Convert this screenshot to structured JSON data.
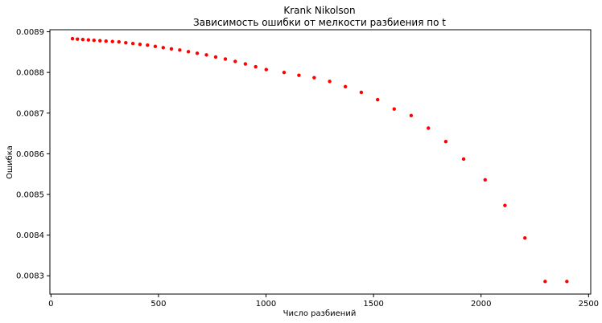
{
  "chart_data": {
    "type": "scatter",
    "title": "Krank Nikolson",
    "subtitle": "Зависимость ошибки от мелкости разбиения по t",
    "xlabel": "Число разбиений",
    "ylabel": "Ошибка",
    "xlim": [
      -5,
      2510
    ],
    "ylim": [
      0.008255,
      0.008905
    ],
    "xticks": [
      0,
      500,
      1000,
      1500,
      2000,
      2500
    ],
    "xtick_labels": [
      "0",
      "500",
      "1000",
      "1500",
      "2000",
      "2500"
    ],
    "yticks": [
      0.0083,
      0.0084,
      0.0085,
      0.0086,
      0.0087,
      0.0088,
      0.0089
    ],
    "ytick_labels": [
      "0.0083",
      "0.0084",
      "0.0085",
      "0.0086",
      "0.0087",
      "0.0088",
      "0.0089"
    ],
    "grid": false,
    "marker_color": "#ff0000",
    "x": [
      100,
      123,
      148,
      174,
      200,
      228,
      256,
      286,
      316,
      348,
      381,
      414,
      449,
      485,
      522,
      560,
      599,
      639,
      680,
      723,
      766,
      811,
      857,
      904,
      952,
      1001,
      1084,
      1153,
      1224,
      1296,
      1369,
      1443,
      1519,
      1596,
      1675,
      1755,
      1836,
      1919,
      2019,
      2111,
      2204,
      2298,
      2399
    ],
    "y": [
      0.008883,
      0.008882,
      0.008881,
      0.00888,
      0.008879,
      0.008878,
      0.008877,
      0.008876,
      0.008875,
      0.008873,
      0.008871,
      0.008869,
      0.008867,
      0.008864,
      0.008861,
      0.008858,
      0.008855,
      0.008851,
      0.008847,
      0.008843,
      0.008838,
      0.008833,
      0.008827,
      0.008821,
      0.008814,
      0.008807,
      0.0088,
      0.008793,
      0.008787,
      0.008778,
      0.008765,
      0.008751,
      0.008733,
      0.00871,
      0.008694,
      0.008663,
      0.00863,
      0.008587,
      0.008536,
      0.008473,
      0.008393,
      0.008286,
      0.008286
    ]
  }
}
